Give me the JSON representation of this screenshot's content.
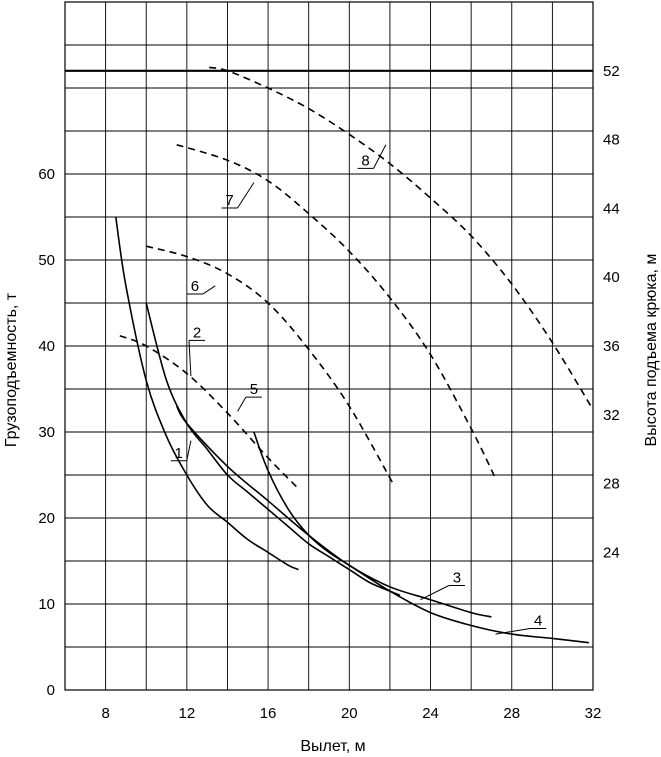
{
  "chart_data": {
    "type": "line",
    "title": "",
    "xlabel": "Вылет, м",
    "ylabel": "Грузоподъемность, т",
    "y2label": "Высота подъема крюка, м",
    "xlim": [
      6,
      32
    ],
    "ylim": [
      0,
      80
    ],
    "y2lim": [
      16,
      56
    ],
    "x_ticks": [
      "8",
      "12",
      "16",
      "20",
      "24",
      "28",
      "32"
    ],
    "y_ticks": [
      "0",
      "10",
      "20",
      "30",
      "40",
      "50",
      "60"
    ],
    "y2_ticks": [
      "24",
      "28",
      "32",
      "36",
      "40",
      "44",
      "48",
      "52"
    ],
    "grid": true,
    "reference_line_y2": 52,
    "series": [
      {
        "name": "1",
        "axis": "left",
        "style": "solid",
        "x": [
          8.5,
          9,
          10,
          11,
          12,
          13,
          14,
          15,
          16,
          17,
          17.5
        ],
        "y": [
          55,
          47,
          36,
          29.5,
          25,
          21.5,
          19.5,
          17.5,
          16,
          14.5,
          14
        ],
        "label_at": [
          11.6,
          27
        ],
        "leader_to": [
          12.2,
          29
        ]
      },
      {
        "name": "2",
        "axis": "left",
        "style": "solid",
        "x": [
          10,
          11,
          12,
          13,
          14,
          15,
          16,
          17,
          18,
          19,
          20,
          21,
          22,
          22.5
        ],
        "y": [
          45,
          36,
          31,
          28,
          25,
          23,
          21,
          19,
          17,
          15.5,
          14,
          12.5,
          11.5,
          11
        ],
        "label_at": [
          12.5,
          41
        ],
        "leader_to": [
          12.2,
          36.5
        ]
      },
      {
        "name": "3",
        "axis": "left",
        "style": "solid",
        "x": [
          11.5,
          12,
          14,
          16,
          18,
          20,
          22,
          24,
          26,
          27
        ],
        "y": [
          33,
          31,
          26,
          22,
          18,
          14.5,
          12,
          10.5,
          9,
          8.5
        ],
        "label_at": [
          25.3,
          12.5
        ],
        "leader_to": [
          23.5,
          10.5
        ]
      },
      {
        "name": "4",
        "axis": "left",
        "style": "solid",
        "x": [
          15.3,
          16,
          17,
          18,
          19,
          20,
          22,
          24,
          26,
          28,
          30,
          31.8
        ],
        "y": [
          30,
          25.5,
          21,
          18,
          16,
          14.5,
          11.5,
          9,
          7.5,
          6.5,
          6,
          5.5
        ],
        "label_at": [
          29.3,
          7.5
        ],
        "leader_to": [
          27.2,
          6.5
        ]
      },
      {
        "name": "5",
        "axis": "right",
        "style": "dashed",
        "x": [
          8.7,
          10,
          12,
          14,
          16,
          17.5
        ],
        "y": [
          36.6,
          36,
          34.4,
          32.1,
          29.5,
          27.7
        ],
        "label_at": [
          15.3,
          33.2
        ],
        "leader_to": [
          14.5,
          32.2
        ]
      },
      {
        "name": "6",
        "axis": "right",
        "style": "dashed",
        "x": [
          10,
          12,
          14,
          16,
          18,
          20,
          22.2
        ],
        "y": [
          41.8,
          41.2,
          40.2,
          38.5,
          35.8,
          32.5,
          27.9
        ],
        "label_at": [
          12.4,
          39.2
        ],
        "leader_to": [
          13.4,
          39.5
        ]
      },
      {
        "name": "7",
        "axis": "right",
        "style": "dashed",
        "x": [
          11.5,
          14,
          16,
          18,
          20,
          22,
          24,
          26,
          27.2
        ],
        "y": [
          47.7,
          46.8,
          45.6,
          43.7,
          41.5,
          38.8,
          35.5,
          31.2,
          28.3
        ],
        "label_at": [
          14.1,
          44.2
        ],
        "leader_to": [
          15.3,
          45.5
        ]
      },
      {
        "name": "8",
        "axis": "right",
        "style": "dashed",
        "x": [
          13.1,
          14,
          16,
          18,
          20,
          22,
          24,
          26,
          28,
          30,
          32
        ],
        "y": [
          52.2,
          52,
          51,
          49.8,
          48.3,
          46.6,
          44.6,
          42.4,
          39.6,
          36.2,
          32.3
        ],
        "label_at": [
          20.8,
          46.5
        ],
        "leader_to": [
          21.8,
          47.7
        ]
      }
    ]
  }
}
